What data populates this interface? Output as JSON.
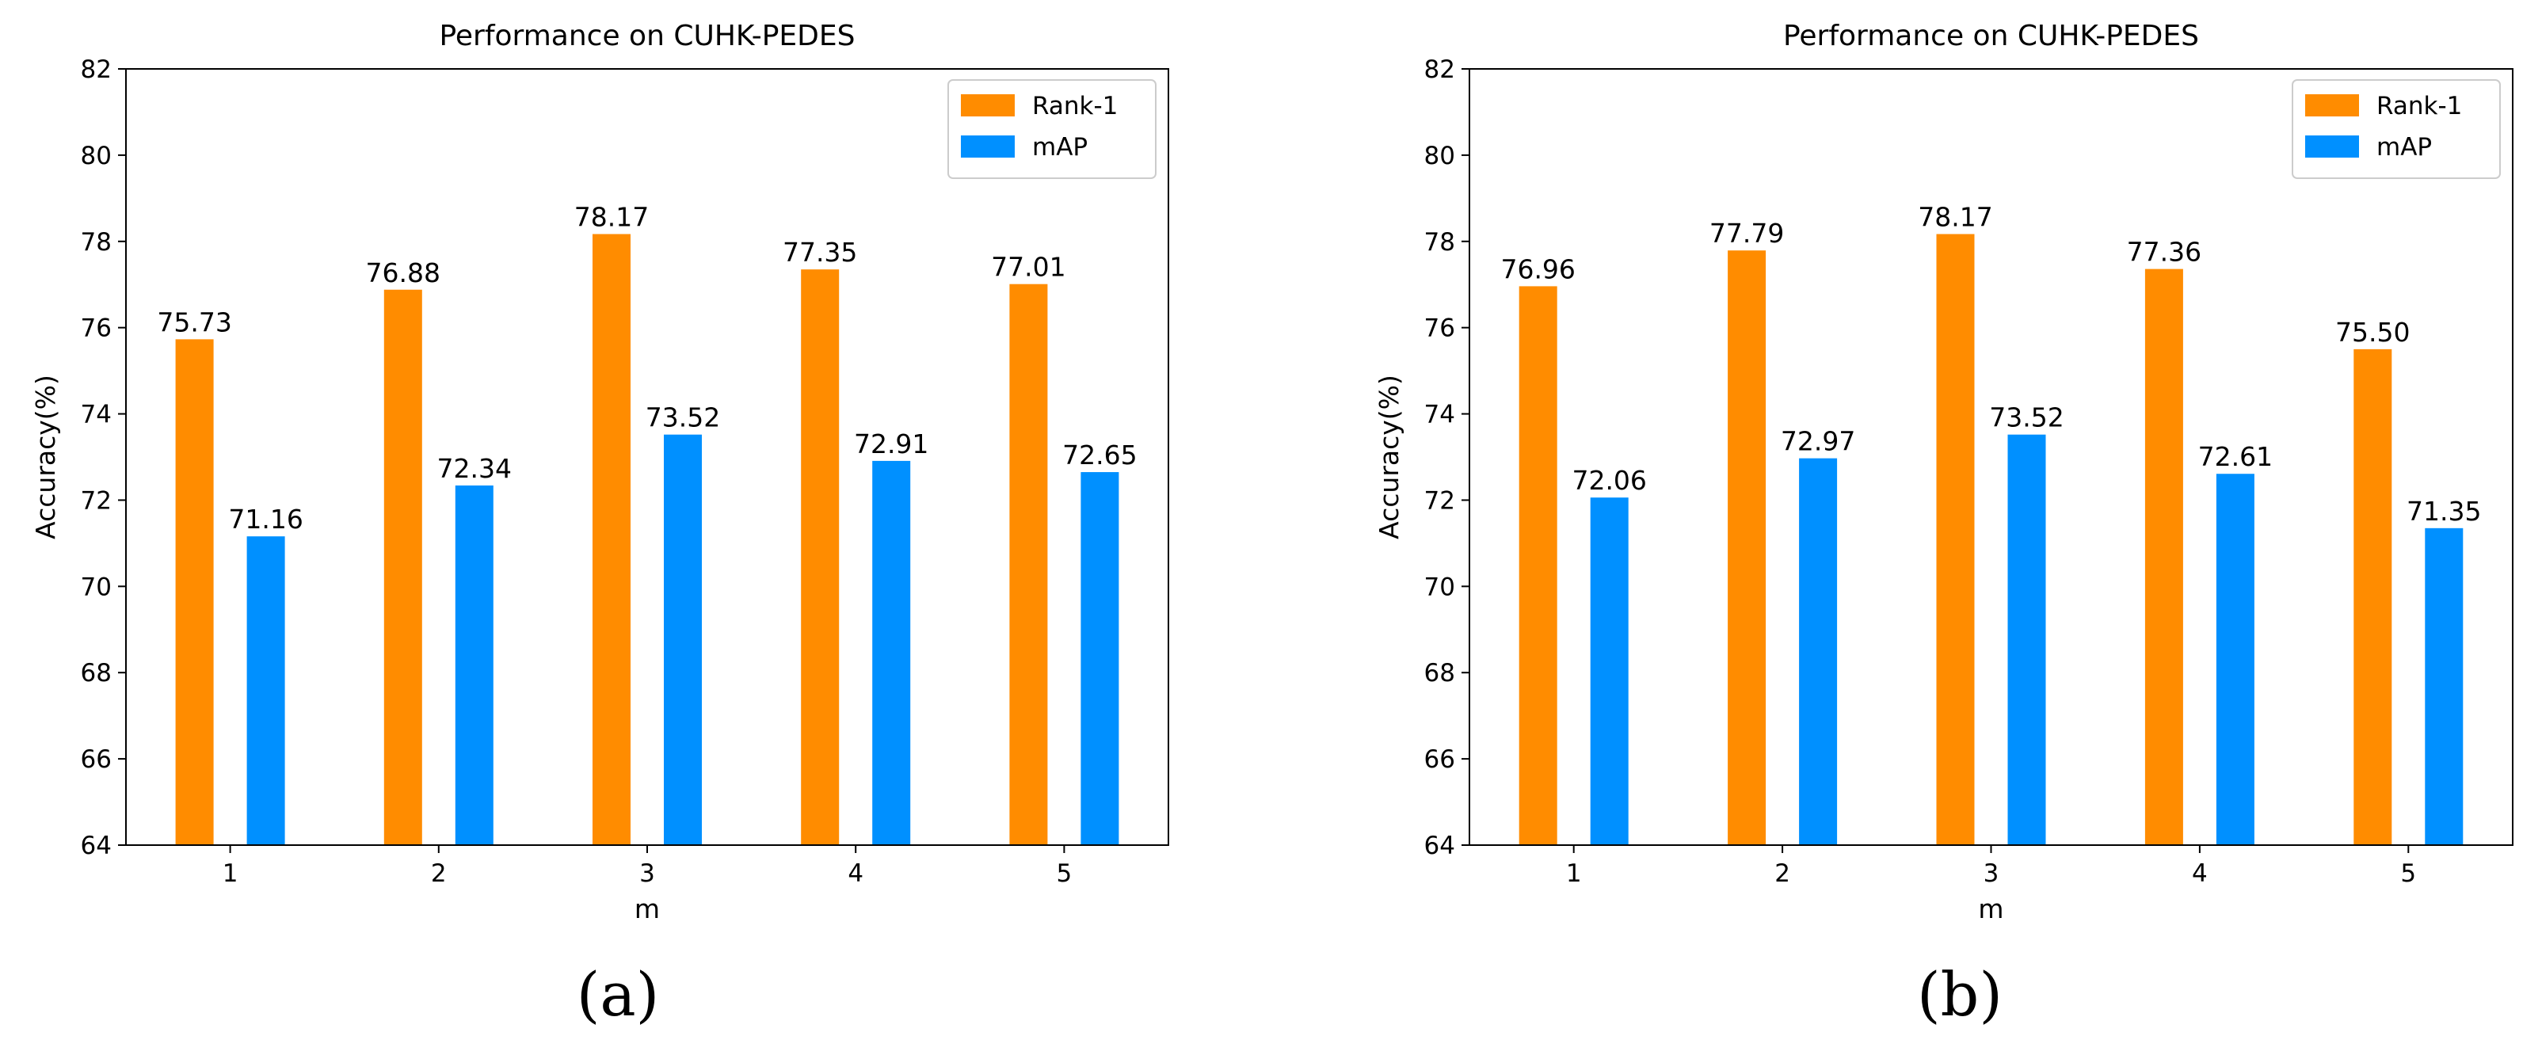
{
  "chart_data": [
    {
      "type": "bar",
      "title": "Performance on CUHK-PEDES",
      "xlabel": "m",
      "ylabel": "Accuracy(%)",
      "categories": [
        "1",
        "2",
        "3",
        "4",
        "5"
      ],
      "ylim": [
        64,
        82
      ],
      "yticks": [
        "64",
        "66",
        "68",
        "70",
        "72",
        "74",
        "76",
        "78",
        "80",
        "82"
      ],
      "series": [
        {
          "name": "Rank-1",
          "color": "#ff8c00",
          "values": [
            75.73,
            76.88,
            78.17,
            77.35,
            77.01
          ],
          "labels": [
            "75.73",
            "76.88",
            "78.17",
            "77.35",
            "77.01"
          ]
        },
        {
          "name": "mAP",
          "color": "#0090ff",
          "values": [
            71.16,
            72.34,
            73.52,
            72.91,
            72.65
          ],
          "labels": [
            "71.16",
            "72.34",
            "73.52",
            "72.91",
            "72.65"
          ]
        }
      ],
      "legend": "top-right",
      "grid": false,
      "caption": "(a)"
    },
    {
      "type": "bar",
      "title": "Performance on CUHK-PEDES",
      "xlabel": "m",
      "ylabel": "Accuracy(%)",
      "categories": [
        "1",
        "2",
        "3",
        "4",
        "5"
      ],
      "ylim": [
        64,
        82
      ],
      "yticks": [
        "64",
        "66",
        "68",
        "70",
        "72",
        "74",
        "76",
        "78",
        "80",
        "82"
      ],
      "series": [
        {
          "name": "Rank-1",
          "color": "#ff8c00",
          "values": [
            76.96,
            77.79,
            78.17,
            77.36,
            75.5
          ],
          "labels": [
            "76.96",
            "77.79",
            "78.17",
            "77.36",
            "75.50"
          ]
        },
        {
          "name": "mAP",
          "color": "#0090ff",
          "values": [
            72.06,
            72.97,
            73.52,
            72.61,
            71.35
          ],
          "labels": [
            "72.06",
            "72.97",
            "73.52",
            "72.61",
            "71.35"
          ]
        }
      ],
      "legend": "top-right",
      "grid": false,
      "caption": "(b)"
    }
  ]
}
